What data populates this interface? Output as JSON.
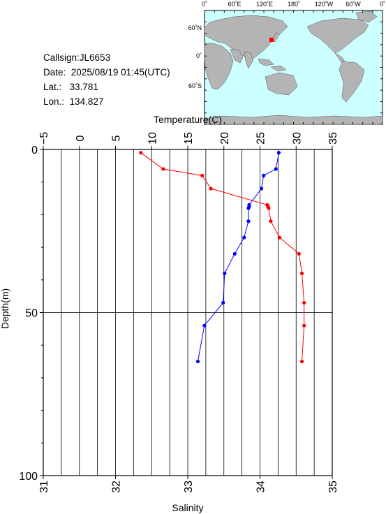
{
  "station": {
    "callsign_label": "Callsign:",
    "callsign": "JL6653",
    "date_label": "Date:",
    "date": "2025/08/19 01:45(UTC)",
    "lat_label": "Lat.:",
    "lat": "33.781",
    "lon_label": "Lon.:",
    "lon": "134.827"
  },
  "map": {
    "lon_labels": [
      "0˚",
      "60˚E",
      "120˚E",
      "180˚",
      "120˚W",
      "60˚W",
      "0˚"
    ],
    "lat_labels": [
      "60˚N",
      "0˚",
      "60˚S"
    ],
    "ocean_color": "#ccffff",
    "land_color": "#b4b4b4",
    "marker_color": "#ff0000"
  },
  "chart_data": {
    "type": "line",
    "title": "",
    "top_axis": {
      "label": "Temperature(C)",
      "range": [
        -5,
        35
      ],
      "ticks": [
        "−5",
        "0",
        "5",
        "10",
        "15",
        "20",
        "25",
        "30",
        "35"
      ]
    },
    "bottom_axis": {
      "label": "Salinity",
      "range": [
        31,
        35
      ],
      "ticks": [
        "31",
        "32",
        "33",
        "34",
        "35"
      ]
    },
    "y_axis": {
      "label": "Depth(m)",
      "range": [
        0,
        100
      ],
      "inverted": true,
      "ticks": [
        "0",
        "50",
        "100"
      ]
    },
    "grid": true,
    "series": [
      {
        "name": "Temperature",
        "axis": "top",
        "color": "#ff0000",
        "points": [
          [
            8.5,
            1
          ],
          [
            11.6,
            6
          ],
          [
            17.0,
            8
          ],
          [
            18.2,
            12
          ],
          [
            26.0,
            17
          ],
          [
            26.1,
            17.5
          ],
          [
            26.2,
            18
          ],
          [
            26.5,
            22
          ],
          [
            27.7,
            27
          ],
          [
            30.4,
            32
          ],
          [
            30.8,
            38
          ],
          [
            31.1,
            47
          ],
          [
            31.1,
            54
          ],
          [
            30.8,
            65
          ]
        ]
      },
      {
        "name": "Salinity",
        "axis": "bottom",
        "color": "#0000ff",
        "points": [
          [
            34.26,
            1
          ],
          [
            34.22,
            6
          ],
          [
            34.05,
            8
          ],
          [
            34.02,
            12
          ],
          [
            33.85,
            17
          ],
          [
            33.85,
            17.5
          ],
          [
            33.84,
            18
          ],
          [
            33.84,
            22
          ],
          [
            33.78,
            27
          ],
          [
            33.65,
            32
          ],
          [
            33.51,
            38
          ],
          [
            33.49,
            47
          ],
          [
            33.23,
            54
          ],
          [
            33.14,
            65
          ]
        ]
      }
    ]
  }
}
